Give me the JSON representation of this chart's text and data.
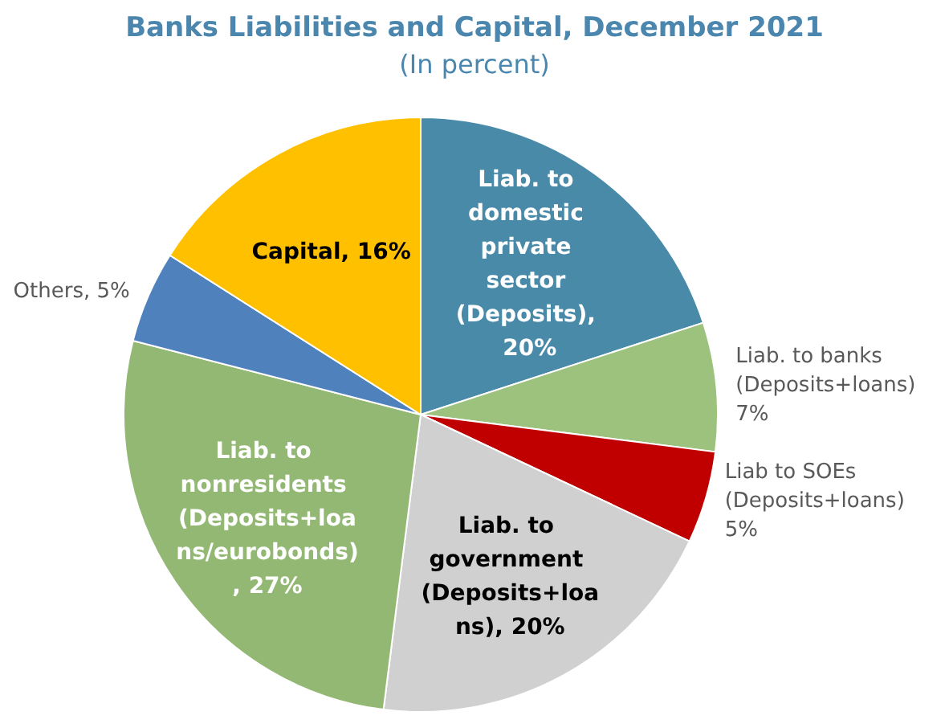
{
  "chart_data": {
    "type": "pie",
    "title": "Banks Liabilities and Capital, December 2021",
    "subtitle": "(In percent)",
    "categories": [
      "Liab. to domestic private sector (Deposits)",
      "Liab. to banks (Deposits+loans)",
      "Liab to SOEs (Deposits+loans)",
      "Liab. to government (Deposits+loans)",
      "Liab. to nonresidents (Deposits+loans/eurobonds)",
      "Others",
      "Capital"
    ],
    "values": [
      20,
      7,
      5,
      20,
      27,
      5,
      16
    ],
    "value_labels": [
      ", 20%",
      "7%",
      "5%",
      ", 20%",
      ", 27%",
      ", 5%",
      ", 16%"
    ],
    "colors": [
      "#4a8aa9",
      "#9cc27e",
      "#c00000",
      "#d0d0d0",
      "#93b874",
      "#4f81bd",
      "#ffc000"
    ],
    "data_labels": true,
    "legend": false
  }
}
